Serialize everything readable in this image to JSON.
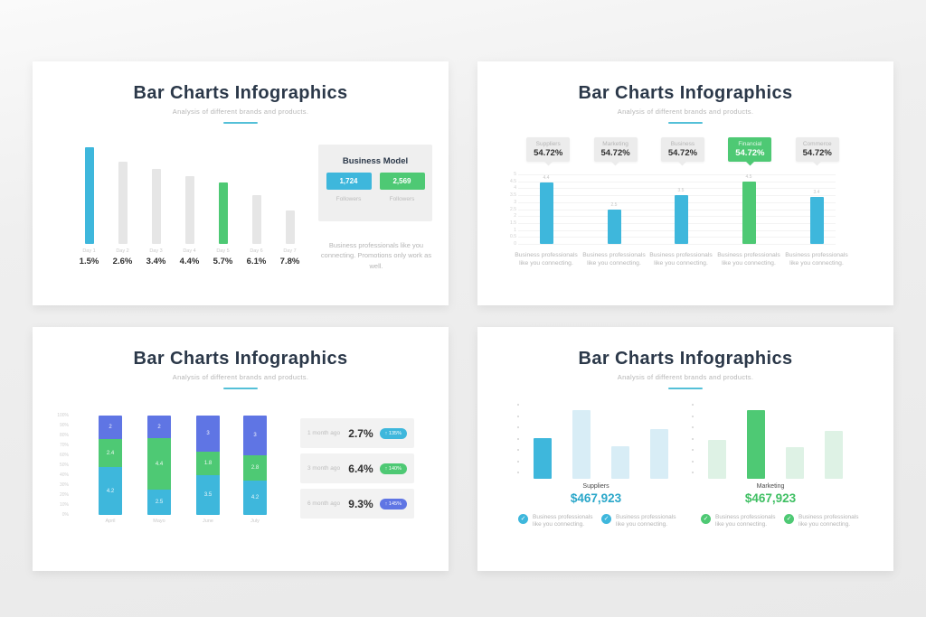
{
  "shared": {
    "title": "Bar Charts Infographics",
    "subtitle": "Analysis of different brands and products.",
    "connect_caption": "Business professionals like you connecting."
  },
  "colors": {
    "navy": "#2b3849",
    "cyan": "#3eb7dc",
    "green": "#4ec974",
    "blue": "#5f75e4",
    "gray_bar": "#e6e6e6",
    "light_cyan": "#d8edf6",
    "light_green": "#def2e5",
    "panel_gray": "#efefef",
    "underline_teal": "#54c0d8",
    "gray_text": "#b5b5b5",
    "dark_text": "#2f2f2f",
    "amount_cyan": "#2aa7c9",
    "amount_green": "#3fbf63"
  },
  "chart_data": [
    {
      "slide": 1,
      "type": "bar",
      "categories": [
        "Day 1",
        "Day 2",
        "Day 3",
        "Day 4",
        "Day 5",
        "Day 6",
        "Day 7"
      ],
      "value_labels": [
        "1.5%",
        "2.6%",
        "3.4%",
        "4.4%",
        "5.7%",
        "6.1%",
        "7.8%"
      ],
      "bar_heights_pct_of_max": [
        100,
        85,
        78,
        70,
        64,
        50,
        35
      ],
      "bar_colors": [
        "cyan",
        "gray",
        "gray",
        "gray",
        "green",
        "gray",
        "gray"
      ]
    },
    {
      "slide": 2,
      "type": "bar",
      "categories": [
        "Suppliers",
        "Marketing",
        "Business",
        "Financial",
        "Commerce"
      ],
      "callout_value": "54.72%",
      "values": [
        4.4,
        2.5,
        3.5,
        4.5,
        3.4
      ],
      "highlight_index": 3,
      "ylim": [
        0,
        5
      ],
      "yticks": [
        5,
        4.5,
        4,
        3.5,
        3,
        2.5,
        2,
        1.5,
        1,
        0.5,
        0
      ],
      "caption_per_bar": "Business professionals like you connecting."
    },
    {
      "slide": 3,
      "type": "stacked-bar",
      "categories": [
        "April",
        "Mayo",
        "June",
        "July"
      ],
      "yticks": [
        "100%",
        "90%",
        "80%",
        "70%",
        "60%",
        "50%",
        "40%",
        "30%",
        "20%",
        "10%",
        "0%"
      ],
      "series": [
        {
          "name": "bottom",
          "color": "cyan",
          "values": [
            4.2,
            2.5,
            3.5,
            4.2
          ],
          "fractions": [
            0.48,
            0.25,
            0.4,
            0.35
          ]
        },
        {
          "name": "middle",
          "color": "green",
          "values": [
            2.4,
            4.4,
            1.8,
            2.8
          ],
          "fractions": [
            0.28,
            0.52,
            0.24,
            0.25
          ]
        },
        {
          "name": "top",
          "color": "blue",
          "values": [
            2,
            2,
            3,
            3
          ],
          "fractions": [
            0.24,
            0.23,
            0.36,
            0.4
          ]
        }
      ]
    },
    {
      "slide": 4,
      "type": "bar-groups",
      "groups": [
        {
          "label": "Suppliers",
          "amount": "$467,923",
          "values_pct_of_max": [
            59,
            100,
            47,
            72
          ],
          "highlight_index": 0,
          "palette": "cyan"
        },
        {
          "label": "Marketing",
          "amount": "$467,923",
          "values_pct_of_max": [
            57,
            100,
            46,
            70
          ],
          "highlight_index": 1,
          "palette": "green"
        }
      ]
    }
  ],
  "slide1": {
    "panel": {
      "title": "Business Model",
      "stats": [
        {
          "value": "1,724",
          "label": "Followers",
          "color": "cyan"
        },
        {
          "value": "2,569",
          "label": "Followers",
          "color": "green"
        }
      ]
    },
    "caption": "Business professionals like you connecting. Promotions only work as well."
  },
  "slide3": {
    "rows": [
      {
        "time": "1 month ago",
        "percent": "2.7%",
        "badge": "↑ 135%",
        "color": "cyan"
      },
      {
        "time": "3 month ago",
        "percent": "6.4%",
        "badge": "↑ 140%",
        "color": "green"
      },
      {
        "time": "6 month ago",
        "percent": "9.3%",
        "badge": "↑ 145%",
        "color": "blue"
      }
    ]
  },
  "slide4": {
    "checks": [
      {
        "color": "cyan"
      },
      {
        "color": "cyan"
      },
      {
        "color": "green"
      },
      {
        "color": "green"
      }
    ]
  }
}
